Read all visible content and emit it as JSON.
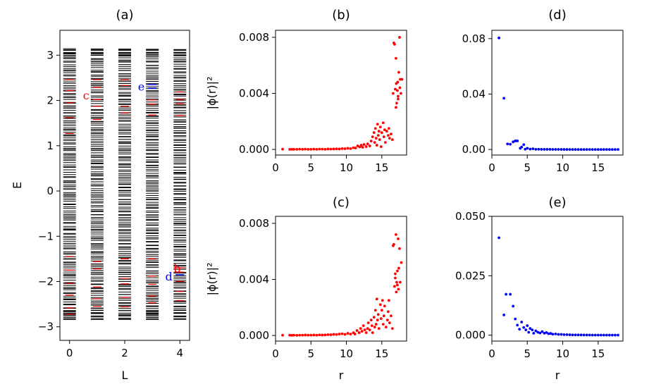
{
  "chart_data": [
    {
      "id": "a",
      "type": "spectrum",
      "title": "(a)",
      "xlabel": "L",
      "ylabel": "E",
      "xlim": [
        -0.35,
        4.35
      ],
      "ylim": [
        -3.3,
        3.55
      ],
      "xticks": [
        0,
        2,
        4
      ],
      "yticks": [
        -3,
        -2,
        -1,
        0,
        1,
        2,
        3
      ],
      "ytick_labels": [
        "−3",
        "−2",
        "−1",
        "0",
        "1",
        "2",
        "3"
      ],
      "bulk_color": "#000000",
      "edge_color": "#ff0000",
      "highlight_color": "#0000ff",
      "bulk_band": [
        -2.85,
        3.15
      ],
      "columns": [
        {
          "L": 0,
          "edge_levels": [
            -2.72,
            -2.58,
            -2.3,
            -2.04,
            -1.75,
            -1.45,
            1.27,
            1.62,
            1.95,
            2.22,
            2.46
          ]
        },
        {
          "L": 1,
          "edge_levels": [
            -2.55,
            -2.38,
            -2.12,
            -1.72,
            -1.56,
            1.58,
            1.87,
            2.02,
            2.29,
            2.46
          ]
        },
        {
          "L": 2,
          "edge_levels": [
            -2.56,
            -2.35,
            -2.05,
            -1.93,
            -1.5,
            1.73,
            1.87,
            2.33,
            2.46
          ]
        },
        {
          "L": 3,
          "edge_levels": [
            -2.47,
            -2.32,
            -2.06,
            -1.88,
            -1.5,
            1.68,
            1.92,
            2.01
          ],
          "highlight_levels": [
            2.27,
            2.35
          ]
        },
        {
          "L": 4,
          "edge_levels": [
            -2.42,
            -2.22,
            -2.0,
            -1.79,
            -1.7,
            1.67,
            1.93,
            2.02,
            2.19
          ],
          "highlight_levels": [
            -1.85
          ]
        }
      ],
      "annotations": [
        {
          "text": "c",
          "L": 0.6,
          "E": 2.1,
          "color": "#ff0000"
        },
        {
          "text": "e",
          "L": 2.6,
          "E": 2.3,
          "color": "#0000ff"
        },
        {
          "text": "b",
          "L": 3.9,
          "E": -1.72,
          "color": "#ff0000"
        },
        {
          "text": "d",
          "L": 3.6,
          "E": -1.9,
          "color": "#0000ff"
        }
      ]
    },
    {
      "id": "b",
      "type": "scatter",
      "title": "(b)",
      "xlabel": "",
      "ylabel": "|ϕ(r)|²",
      "xlim": [
        0,
        18.5
      ],
      "ylim": [
        -0.0004,
        0.0085
      ],
      "xticks": [
        0,
        5,
        10,
        15
      ],
      "yticks": [
        0.0,
        0.004,
        0.008
      ],
      "ytick_labels": [
        "0.000",
        "0.004",
        "0.008"
      ],
      "color": "#ff0000",
      "points": [
        [
          1.0,
          2e-05
        ],
        [
          2.0,
          1e-05
        ],
        [
          2.3,
          1e-05
        ],
        [
          2.6,
          1e-05
        ],
        [
          3.0,
          1e-05
        ],
        [
          3.4,
          2e-05
        ],
        [
          3.8,
          1e-05
        ],
        [
          4.2,
          2e-05
        ],
        [
          4.6,
          1e-05
        ],
        [
          5.0,
          1e-05
        ],
        [
          5.4,
          2e-05
        ],
        [
          5.8,
          1e-05
        ],
        [
          6.2,
          2e-05
        ],
        [
          6.6,
          2e-05
        ],
        [
          7.0,
          1e-05
        ],
        [
          7.4,
          3e-05
        ],
        [
          7.8,
          2e-05
        ],
        [
          8.2,
          3e-05
        ],
        [
          8.6,
          4e-05
        ],
        [
          9.0,
          3e-05
        ],
        [
          9.4,
          6e-05
        ],
        [
          9.8,
          5e-05
        ],
        [
          10.2,
          8e-05
        ],
        [
          10.6,
          6e-05
        ],
        [
          11.0,
          0.00012
        ],
        [
          11.3,
          0.0001
        ],
        [
          11.6,
          0.00025
        ],
        [
          11.9,
          0.00018
        ],
        [
          12.1,
          0.0003
        ],
        [
          12.3,
          0.00015
        ],
        [
          12.5,
          0.00035
        ],
        [
          12.8,
          0.0002
        ],
        [
          13.0,
          0.0004
        ],
        [
          13.3,
          0.00025
        ],
        [
          13.5,
          0.0006
        ],
        [
          13.7,
          0.0009
        ],
        [
          13.9,
          0.0012
        ],
        [
          14.0,
          0.0005
        ],
        [
          14.1,
          0.0015
        ],
        [
          14.2,
          0.0008
        ],
        [
          14.3,
          0.0003
        ],
        [
          14.4,
          0.0018
        ],
        [
          14.5,
          0.001
        ],
        [
          14.6,
          0.0013
        ],
        [
          14.7,
          0.0007
        ],
        [
          14.8,
          0.0016
        ],
        [
          14.9,
          0.0002
        ],
        [
          15.0,
          0.0012
        ],
        [
          15.2,
          0.0019
        ],
        [
          15.3,
          0.0009
        ],
        [
          15.4,
          0.0014
        ],
        [
          15.5,
          0.0005
        ],
        [
          15.7,
          0.0013
        ],
        [
          15.9,
          0.001
        ],
        [
          16.0,
          0.0015
        ],
        [
          16.1,
          0.0008
        ],
        [
          16.3,
          0.0011
        ],
        [
          16.5,
          0.0007
        ],
        [
          16.6,
          0.004
        ],
        [
          16.7,
          0.0076
        ],
        [
          16.8,
          0.0075
        ],
        [
          16.9,
          0.0043
        ],
        [
          17.0,
          0.0065
        ],
        [
          17.05,
          0.0047
        ],
        [
          17.1,
          0.0033
        ],
        [
          17.2,
          0.0042
        ],
        [
          17.25,
          0.0048
        ],
        [
          17.3,
          0.0038
        ],
        [
          17.4,
          0.0055
        ],
        [
          17.5,
          0.008
        ],
        [
          17.55,
          0.0044
        ],
        [
          17.6,
          0.005
        ],
        [
          17.7,
          0.004
        ],
        [
          17.85,
          0.005
        ],
        [
          17.0,
          0.003
        ],
        [
          17.3,
          0.0036
        ]
      ]
    },
    {
      "id": "c",
      "type": "scatter",
      "title": "(c)",
      "xlabel": "r",
      "ylabel": "|ϕ(r)|²",
      "xlim": [
        0,
        18.5
      ],
      "ylim": [
        -0.0004,
        0.0085
      ],
      "xticks": [
        0,
        5,
        10,
        15
      ],
      "yticks": [
        0.0,
        0.004,
        0.008
      ],
      "ytick_labels": [
        "0.000",
        "0.004",
        "0.008"
      ],
      "color": "#ff0000",
      "points": [
        [
          1.0,
          2e-05
        ],
        [
          2.0,
          2e-05
        ],
        [
          2.3,
          1e-05
        ],
        [
          2.6,
          2e-05
        ],
        [
          3.0,
          1e-05
        ],
        [
          3.4,
          2e-05
        ],
        [
          3.8,
          2e-05
        ],
        [
          4.2,
          3e-05
        ],
        [
          4.6,
          2e-05
        ],
        [
          5.0,
          2e-05
        ],
        [
          5.4,
          3e-05
        ],
        [
          5.8,
          2e-05
        ],
        [
          6.2,
          4e-05
        ],
        [
          6.6,
          3e-05
        ],
        [
          7.0,
          4e-05
        ],
        [
          7.4,
          6e-05
        ],
        [
          7.8,
          5e-05
        ],
        [
          8.2,
          8e-05
        ],
        [
          8.6,
          7e-05
        ],
        [
          9.0,
          0.0001
        ],
        [
          9.4,
          0.00012
        ],
        [
          9.8,
          8e-05
        ],
        [
          10.2,
          0.00015
        ],
        [
          10.6,
          0.0001
        ],
        [
          11.0,
          0.0002
        ],
        [
          11.2,
          0.0001
        ],
        [
          11.5,
          0.00035
        ],
        [
          11.8,
          0.0002
        ],
        [
          12.0,
          0.0005
        ],
        [
          12.2,
          0.0003
        ],
        [
          12.4,
          0.0007
        ],
        [
          12.6,
          0.0004
        ],
        [
          12.8,
          0.0002
        ],
        [
          13.0,
          0.0005
        ],
        [
          13.1,
          0.0009
        ],
        [
          13.3,
          0.0004
        ],
        [
          13.5,
          0.0011
        ],
        [
          13.6,
          0.0007
        ],
        [
          13.7,
          0.0002
        ],
        [
          13.9,
          0.0013
        ],
        [
          14.0,
          0.0006
        ],
        [
          14.1,
          0.0018
        ],
        [
          14.2,
          0.0008
        ],
        [
          14.3,
          0.0026
        ],
        [
          14.4,
          0.0011
        ],
        [
          14.5,
          0.0015
        ],
        [
          14.6,
          0.0005
        ],
        [
          14.8,
          0.0022
        ],
        [
          14.9,
          0.0012
        ],
        [
          15.0,
          0.0018
        ],
        [
          15.1,
          0.0025
        ],
        [
          15.2,
          0.0008
        ],
        [
          15.3,
          0.0014
        ],
        [
          15.4,
          0.0021
        ],
        [
          15.6,
          0.0006
        ],
        [
          15.8,
          0.0011
        ],
        [
          15.9,
          0.0017
        ],
        [
          16.0,
          0.0025
        ],
        [
          16.1,
          0.0009
        ],
        [
          16.3,
          0.0014
        ],
        [
          16.5,
          0.0005
        ],
        [
          16.6,
          0.0064
        ],
        [
          16.7,
          0.0065
        ],
        [
          16.8,
          0.0035
        ],
        [
          16.9,
          0.0041
        ],
        [
          17.0,
          0.0072
        ],
        [
          17.05,
          0.0031
        ],
        [
          17.1,
          0.0038
        ],
        [
          17.2,
          0.0046
        ],
        [
          17.3,
          0.0069
        ],
        [
          17.35,
          0.0033
        ],
        [
          17.4,
          0.0048
        ],
        [
          17.5,
          0.0062
        ],
        [
          17.6,
          0.0038
        ],
        [
          17.75,
          0.0052
        ],
        [
          17.2,
          0.0036
        ],
        [
          16.9,
          0.0044
        ]
      ]
    },
    {
      "id": "d",
      "type": "scatter",
      "title": "(d)",
      "xlabel": "",
      "ylabel": "",
      "xlim": [
        0,
        18.5
      ],
      "ylim": [
        -0.004,
        0.086
      ],
      "xticks": [
        0,
        5,
        10,
        15
      ],
      "yticks": [
        0.0,
        0.04,
        0.08
      ],
      "ytick_labels": [
        "0.00",
        "0.04",
        "0.08"
      ],
      "color": "#0000ff",
      "points": [
        [
          1.0,
          0.0805
        ],
        [
          1.7,
          0.037
        ],
        [
          2.2,
          0.004
        ],
        [
          2.6,
          0.0038
        ],
        [
          3.0,
          0.0055
        ],
        [
          3.3,
          0.0062
        ],
        [
          3.6,
          0.0062
        ],
        [
          4.0,
          0.0008
        ],
        [
          4.2,
          0.0018
        ],
        [
          4.5,
          0.0035
        ],
        [
          4.7,
          0.0002
        ],
        [
          5.0,
          0.0009
        ],
        [
          5.4,
          0.0003
        ],
        [
          5.8,
          0.0005
        ],
        [
          6.2,
          0.0001
        ],
        [
          6.6,
          0.0002
        ],
        [
          7.0,
          0.0001
        ],
        [
          7.4,
          0.0001
        ],
        [
          7.8,
          0.0001
        ],
        [
          8.2,
          0.0001
        ],
        [
          8.6,
          5e-05
        ],
        [
          9.0,
          5e-05
        ],
        [
          9.4,
          5e-05
        ],
        [
          9.8,
          4e-05
        ],
        [
          10.2,
          3e-05
        ],
        [
          10.6,
          3e-05
        ],
        [
          11.0,
          2e-05
        ],
        [
          11.4,
          2e-05
        ],
        [
          11.8,
          2e-05
        ],
        [
          12.2,
          1e-05
        ],
        [
          12.6,
          1e-05
        ],
        [
          13.0,
          1e-05
        ],
        [
          13.4,
          1e-05
        ],
        [
          13.8,
          1e-05
        ],
        [
          14.2,
          1e-05
        ],
        [
          14.6,
          1e-05
        ],
        [
          15.0,
          1e-05
        ],
        [
          15.4,
          1e-05
        ],
        [
          15.8,
          1e-05
        ],
        [
          16.2,
          1e-05
        ],
        [
          16.6,
          1e-05
        ],
        [
          17.0,
          1e-05
        ],
        [
          17.4,
          1e-05
        ],
        [
          17.8,
          1e-05
        ]
      ]
    },
    {
      "id": "e",
      "type": "scatter",
      "title": "(e)",
      "xlabel": "r",
      "ylabel": "",
      "xlim": [
        0,
        18.5
      ],
      "ylim": [
        -0.0025,
        0.05
      ],
      "xticks": [
        0,
        5,
        10,
        15
      ],
      "yticks": [
        0.0,
        0.025,
        0.05
      ],
      "ytick_labels": [
        "0.000",
        "0.025",
        "0.050"
      ],
      "color": "#0000ff",
      "points": [
        [
          1.0,
          0.041
        ],
        [
          1.7,
          0.0085
        ],
        [
          2.0,
          0.0172
        ],
        [
          2.6,
          0.0172
        ],
        [
          3.0,
          0.0122
        ],
        [
          3.3,
          0.0068
        ],
        [
          3.6,
          0.0042
        ],
        [
          3.9,
          0.0025
        ],
        [
          4.2,
          0.0055
        ],
        [
          4.5,
          0.0032
        ],
        [
          4.8,
          0.0022
        ],
        [
          5.0,
          0.004
        ],
        [
          5.2,
          0.0012
        ],
        [
          5.4,
          0.0028
        ],
        [
          5.7,
          0.0022
        ],
        [
          5.9,
          0.0008
        ],
        [
          6.2,
          0.0018
        ],
        [
          6.5,
          0.0012
        ],
        [
          6.8,
          0.0009
        ],
        [
          7.1,
          0.0015
        ],
        [
          7.4,
          0.0008
        ],
        [
          7.7,
          0.0011
        ],
        [
          8.0,
          0.0006
        ],
        [
          8.3,
          0.0007
        ],
        [
          8.6,
          0.0004
        ],
        [
          9.0,
          0.0005
        ],
        [
          9.4,
          0.0003
        ],
        [
          9.8,
          0.0003
        ],
        [
          10.2,
          0.0002
        ],
        [
          10.6,
          0.0002
        ],
        [
          11.0,
          0.00015
        ],
        [
          11.4,
          0.0001
        ],
        [
          11.8,
          0.0001
        ],
        [
          12.2,
          0.0001
        ],
        [
          12.6,
          8e-05
        ],
        [
          13.0,
          6e-05
        ],
        [
          13.4,
          5e-05
        ],
        [
          13.8,
          4e-05
        ],
        [
          14.2,
          3e-05
        ],
        [
          14.6,
          3e-05
        ],
        [
          15.0,
          2e-05
        ],
        [
          15.4,
          2e-05
        ],
        [
          15.8,
          2e-05
        ],
        [
          16.2,
          1e-05
        ],
        [
          16.6,
          1e-05
        ],
        [
          17.0,
          1e-05
        ],
        [
          17.4,
          1e-05
        ],
        [
          17.8,
          1e-05
        ]
      ]
    }
  ]
}
